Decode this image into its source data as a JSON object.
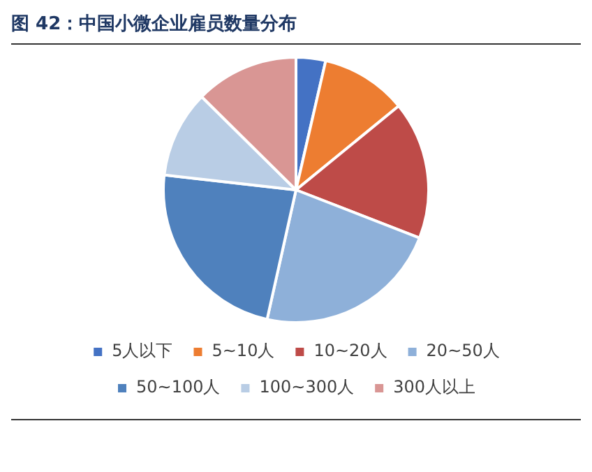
{
  "chart_data": {
    "type": "pie",
    "title": "图 42：中国小微企业雇员数量分布",
    "categories": [
      "5人以下",
      "5~10人",
      "10~20人",
      "20~50人",
      "50~100人",
      "100~300人",
      "300人以上"
    ],
    "values": [
      3.6,
      10.5,
      16.8,
      22.6,
      23.3,
      10.6,
      12.6
    ],
    "colors": [
      "#4472c4",
      "#ed7d31",
      "#be4b48",
      "#8eb0d9",
      "#4f81bd",
      "#b9cde5",
      "#d99694"
    ],
    "legend": "bottom"
  }
}
